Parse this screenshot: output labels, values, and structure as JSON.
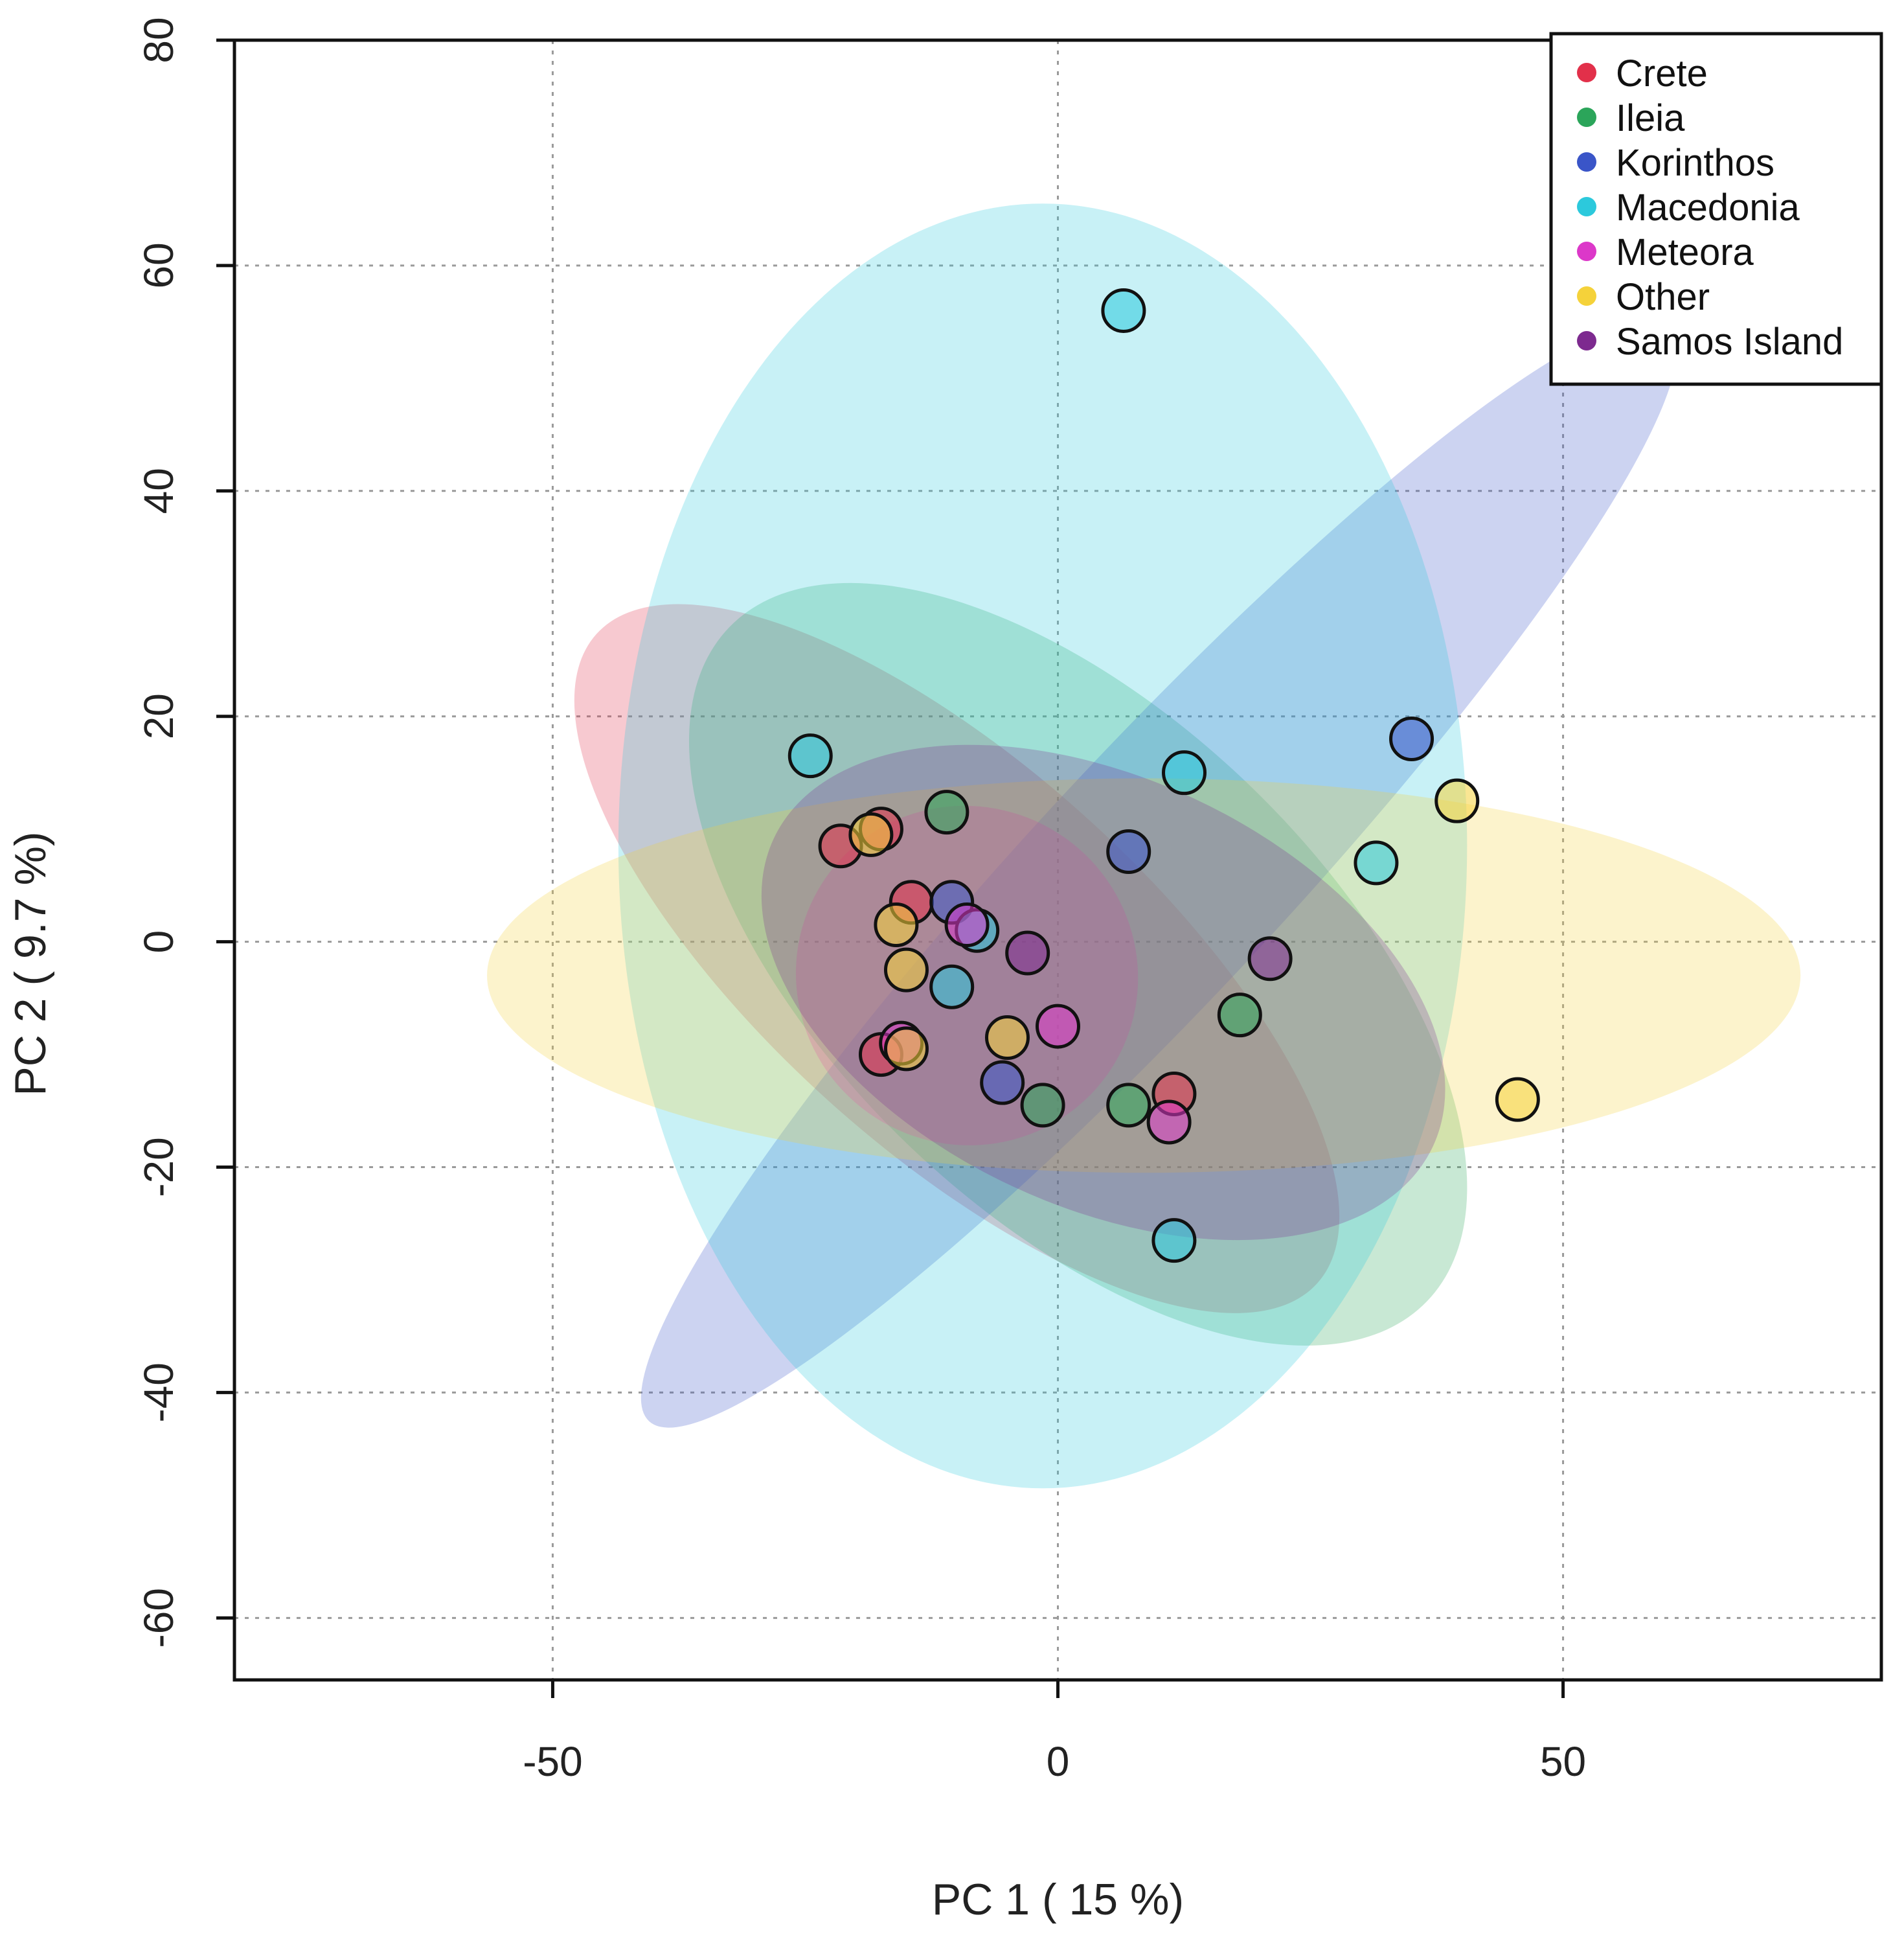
{
  "chart_data": {
    "type": "scatter",
    "title": "",
    "xlabel": "PC 1 ( 15 %)",
    "ylabel": "PC 2 ( 9.7 %)",
    "xlim": [
      -81.5,
      81.5
    ],
    "ylim": [
      -65.5,
      80
    ],
    "xticks": [
      -50,
      0,
      50
    ],
    "xtick_labels": [
      "-50",
      "0",
      "50"
    ],
    "yticks": [
      -60,
      -40,
      -20,
      0,
      20,
      40,
      60,
      80
    ],
    "ytick_labels": [
      "-60",
      "-40",
      "-20",
      "0",
      "20",
      "40",
      "60",
      "80"
    ],
    "grid": true,
    "legend_position": "top-right",
    "series": [
      {
        "name": "Crete",
        "color": "#e2304a",
        "points": [
          [
            -21.5,
            8.5
          ],
          [
            -17.5,
            10.0
          ],
          [
            -14.5,
            3.5
          ],
          [
            -17.5,
            -10.0
          ],
          [
            11.5,
            -13.5
          ]
        ],
        "ellipse": {
          "cx": -10.0,
          "cy": -1.5,
          "rx": 48,
          "ry": 17,
          "angle_deg": -42
        }
      },
      {
        "name": "Ileia",
        "color": "#2ba55a",
        "points": [
          [
            -11.0,
            11.5
          ],
          [
            -1.5,
            -14.5
          ],
          [
            7.0,
            -14.5
          ],
          [
            18.0,
            -6.5
          ]
        ],
        "ellipse": {
          "cx": 2.0,
          "cy": -2.0,
          "rx": 48,
          "ry": 22,
          "angle_deg": -44
        }
      },
      {
        "name": "Korinthos",
        "color": "#3a55c8",
        "points": [
          [
            35.0,
            18.0
          ],
          [
            7.0,
            8.0
          ],
          [
            -10.5,
            3.5
          ],
          [
            -5.5,
            -12.5
          ]
        ],
        "ellipse": {
          "cx": 10.0,
          "cy": 6.0,
          "rx": 74,
          "ry": 11,
          "angle_deg": 47
        }
      },
      {
        "name": "Macedonia",
        "color": "#2cc9dc",
        "points": [
          [
            6.5,
            56.0
          ],
          [
            -24.5,
            16.5
          ],
          [
            12.5,
            15.0
          ],
          [
            31.5,
            7.0
          ],
          [
            -8.0,
            1.0
          ],
          [
            -10.5,
            -4.0
          ],
          [
            11.5,
            -26.5
          ]
        ],
        "ellipse": {
          "cx": -1.5,
          "cy": 8.5,
          "rx": 42,
          "ry": 57,
          "angle_deg": 0
        }
      },
      {
        "name": "Meteora",
        "color": "#dc38c9",
        "points": [
          [
            -9.0,
            1.5
          ],
          [
            -15.5,
            -9.0
          ],
          [
            0.0,
            -7.5
          ],
          [
            11.0,
            -16.0
          ]
        ],
        "ellipse": {
          "cx": -9.0,
          "cy": -3.0,
          "rx": 17,
          "ry": 15,
          "angle_deg": -30
        }
      },
      {
        "name": "Other",
        "color": "#f5d23a",
        "points": [
          [
            -18.5,
            9.5
          ],
          [
            -16.0,
            1.5
          ],
          [
            -15.0,
            -2.5
          ],
          [
            -15.0,
            -9.5
          ],
          [
            -5.0,
            -8.5
          ],
          [
            39.5,
            12.5
          ],
          [
            45.5,
            -14.0
          ]
        ],
        "ellipse": {
          "cx": 8.5,
          "cy": -3.0,
          "rx": 65,
          "ry": 17.5,
          "angle_deg": 0
        }
      },
      {
        "name": "Samos Island",
        "color": "#7d2a8f",
        "points": [
          [
            -3.0,
            -1.0
          ],
          [
            21.0,
            -1.5
          ]
        ],
        "ellipse": {
          "cx": 4.5,
          "cy": -4.5,
          "rx": 36,
          "ry": 19,
          "angle_deg": -25
        }
      }
    ]
  }
}
